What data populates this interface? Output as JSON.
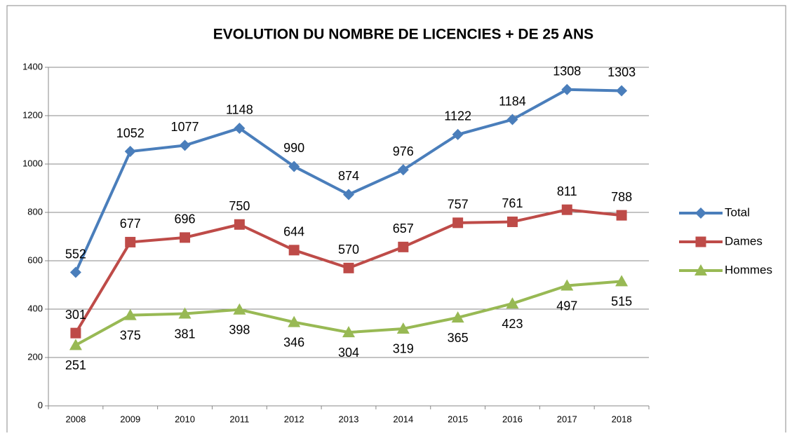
{
  "chart_data": {
    "type": "line",
    "title": "EVOLUTION DU NOMBRE DE LICENCIES + DE 25 ANS",
    "categories": [
      "2008",
      "2009",
      "2010",
      "2011",
      "2012",
      "2013",
      "2014",
      "2015",
      "2016",
      "2017",
      "2018"
    ],
    "series": [
      {
        "name": "Total",
        "color": "#4a7ebb",
        "marker": "diamond",
        "values": [
          552,
          1052,
          1077,
          1148,
          990,
          874,
          976,
          1122,
          1184,
          1308,
          1303
        ]
      },
      {
        "name": "Dames",
        "color": "#be4b48",
        "marker": "square",
        "values": [
          301,
          677,
          696,
          750,
          644,
          570,
          657,
          757,
          761,
          811,
          788
        ]
      },
      {
        "name": "Hommes",
        "color": "#98b954",
        "marker": "triangle",
        "values": [
          251,
          375,
          381,
          398,
          346,
          304,
          319,
          365,
          423,
          497,
          515
        ]
      }
    ],
    "ylim": [
      0,
      1400
    ],
    "yticks": [
      0,
      200,
      400,
      600,
      800,
      1000,
      1200,
      1400
    ],
    "grid": true,
    "legend": "right"
  }
}
